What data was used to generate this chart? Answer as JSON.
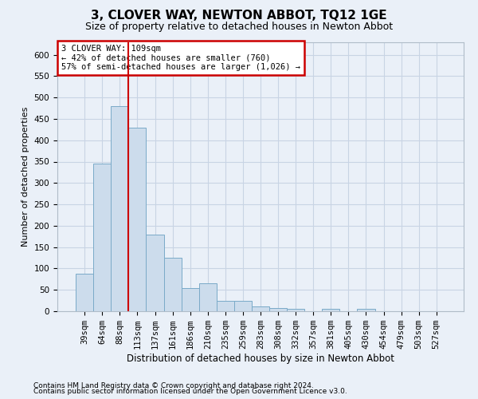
{
  "title": "3, CLOVER WAY, NEWTON ABBOT, TQ12 1GE",
  "subtitle": "Size of property relative to detached houses in Newton Abbot",
  "xlabel": "Distribution of detached houses by size in Newton Abbot",
  "ylabel": "Number of detached properties",
  "footnote1": "Contains HM Land Registry data © Crown copyright and database right 2024.",
  "footnote2": "Contains public sector information licensed under the Open Government Licence v3.0.",
  "bar_labels": [
    "39sqm",
    "64sqm",
    "88sqm",
    "113sqm",
    "137sqm",
    "161sqm",
    "186sqm",
    "210sqm",
    "235sqm",
    "259sqm",
    "283sqm",
    "308sqm",
    "332sqm",
    "357sqm",
    "381sqm",
    "405sqm",
    "430sqm",
    "454sqm",
    "479sqm",
    "503sqm",
    "527sqm"
  ],
  "bar_values": [
    88,
    345,
    480,
    430,
    180,
    125,
    55,
    65,
    25,
    25,
    12,
    8,
    5,
    0,
    5,
    0,
    5,
    0,
    0,
    0,
    0
  ],
  "bar_color": "#ccdcec",
  "bar_edge_color": "#7aaac8",
  "grid_color": "#c8d4e4",
  "bg_color": "#eaf0f8",
  "vline_x": 2.5,
  "vline_color": "#cc0000",
  "annotation_text": "3 CLOVER WAY: 109sqm\n← 42% of detached houses are smaller (760)\n57% of semi-detached houses are larger (1,026) →",
  "annotation_box_color": "#ffffff",
  "annotation_box_edge": "#cc0000",
  "ylim": [
    0,
    630
  ],
  "yticks": [
    0,
    50,
    100,
    150,
    200,
    250,
    300,
    350,
    400,
    450,
    500,
    550,
    600
  ],
  "title_fontsize": 11,
  "subtitle_fontsize": 9,
  "ylabel_fontsize": 8,
  "xlabel_fontsize": 8.5,
  "tick_fontsize": 7.5,
  "annot_fontsize": 7.5,
  "footnote_fontsize": 6.5
}
